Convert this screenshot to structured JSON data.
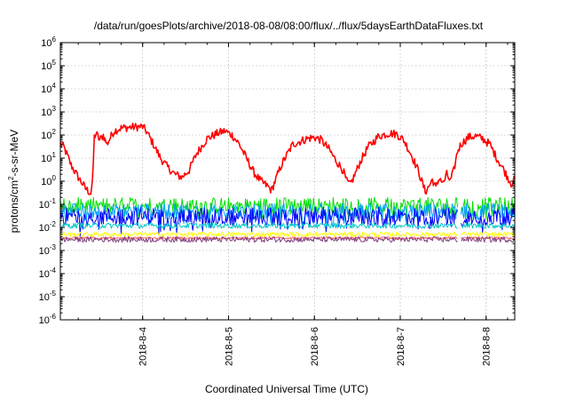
{
  "chart_data": {
    "type": "line",
    "title": "/data/run/goesPlots/archive/2018-08-08/08:00/flux/../flux/5daysEarthDataFluxes.txt",
    "xlabel": "Coordinated Universal Time (UTC)",
    "ylabel": "protons/cm2-s-sr-MeV",
    "ylabel_parts": {
      "prefix": "protons/cm",
      "sup": "2",
      "suffix": "-s-sr-MeV"
    },
    "y_scale": "log",
    "ylim": [
      1e-06,
      1000000.0
    ],
    "y_ticks": [
      {
        "base": "10",
        "exp": "-6",
        "value": 1e-06
      },
      {
        "base": "10",
        "exp": "-5",
        "value": 1e-05
      },
      {
        "base": "10",
        "exp": "-4",
        "value": 0.0001
      },
      {
        "base": "10",
        "exp": "-3",
        "value": 0.001
      },
      {
        "base": "10",
        "exp": "-2",
        "value": 0.01
      },
      {
        "base": "10",
        "exp": "-1",
        "value": 0.1
      },
      {
        "base": "10",
        "exp": "0",
        "value": 1
      },
      {
        "base": "10",
        "exp": "1",
        "value": 10
      },
      {
        "base": "10",
        "exp": "2",
        "value": 100
      },
      {
        "base": "10",
        "exp": "3",
        "value": 1000
      },
      {
        "base": "10",
        "exp": "4",
        "value": 10000
      },
      {
        "base": "10",
        "exp": "5",
        "value": 100000
      },
      {
        "base": "10",
        "exp": "6",
        "value": 1000000
      }
    ],
    "xlim": [
      "2018-08-03 01:00",
      "2018-08-08 08:00"
    ],
    "x_ticks": [
      {
        "label": "2018-8-4",
        "value": "2018-08-04 00:00"
      },
      {
        "label": "2018-8-5",
        "value": "2018-08-05 00:00"
      },
      {
        "label": "2018-8-6",
        "value": "2018-08-06 00:00"
      },
      {
        "label": "2018-8-7",
        "value": "2018-08-07 00:00"
      },
      {
        "label": "2018-8-8",
        "value": "2018-08-08 00:00"
      }
    ],
    "grid": true,
    "gap_range": [
      "2018-08-07 16:00",
      "2018-08-07 17:00"
    ],
    "series": [
      {
        "color": "#ff0000",
        "noise": 0.18,
        "points": [
          [
            "2018-08-03 01:00",
            40
          ],
          [
            "2018-08-03 02:00",
            30
          ],
          [
            "2018-08-03 04:00",
            5
          ],
          [
            "2018-08-03 06:00",
            1.5
          ],
          [
            "2018-08-03 08:00",
            0.5
          ],
          [
            "2018-08-03 09:30",
            0.3
          ],
          [
            "2018-08-03 10:00",
            1
          ],
          [
            "2018-08-03 10:30",
            80
          ],
          [
            "2018-08-03 11:00",
            120
          ],
          [
            "2018-08-03 12:00",
            60
          ],
          [
            "2018-08-03 13:00",
            100
          ],
          [
            "2018-08-03 14:00",
            40
          ],
          [
            "2018-08-03 16:00",
            150
          ],
          [
            "2018-08-03 18:00",
            200
          ],
          [
            "2018-08-03 21:00",
            220
          ],
          [
            "2018-08-04 00:00",
            230
          ],
          [
            "2018-08-04 01:00",
            150
          ],
          [
            "2018-08-04 03:00",
            40
          ],
          [
            "2018-08-04 05:00",
            10
          ],
          [
            "2018-08-04 07:00",
            4
          ],
          [
            "2018-08-04 09:00",
            2
          ],
          [
            "2018-08-04 11:00",
            1.5
          ],
          [
            "2018-08-04 13:00",
            3
          ],
          [
            "2018-08-04 15:00",
            15
          ],
          [
            "2018-08-04 18:00",
            70
          ],
          [
            "2018-08-04 21:00",
            120
          ],
          [
            "2018-08-04 23:00",
            150
          ],
          [
            "2018-08-05 01:00",
            100
          ],
          [
            "2018-08-05 03:00",
            40
          ],
          [
            "2018-08-05 05:00",
            10
          ],
          [
            "2018-08-05 07:00",
            2.5
          ],
          [
            "2018-08-05 09:00",
            1
          ],
          [
            "2018-08-05 11:00",
            0.6
          ],
          [
            "2018-08-05 12:00",
            0.4
          ],
          [
            "2018-08-05 13:00",
            1
          ],
          [
            "2018-08-05 15:00",
            6
          ],
          [
            "2018-08-05 18:00",
            40
          ],
          [
            "2018-08-05 22:00",
            70
          ],
          [
            "2018-08-06 00:00",
            80
          ],
          [
            "2018-08-06 02:00",
            60
          ],
          [
            "2018-08-06 04:00",
            25
          ],
          [
            "2018-08-06 06:00",
            8
          ],
          [
            "2018-08-06 08:00",
            3
          ],
          [
            "2018-08-06 09:00",
            1
          ],
          [
            "2018-08-06 10:00",
            0.7
          ],
          [
            "2018-08-06 11:00",
            1.5
          ],
          [
            "2018-08-06 13:00",
            8
          ],
          [
            "2018-08-06 15:00",
            30
          ],
          [
            "2018-08-06 18:00",
            90
          ],
          [
            "2018-08-06 21:00",
            120
          ],
          [
            "2018-08-06 23:00",
            110
          ],
          [
            "2018-08-07 01:00",
            60
          ],
          [
            "2018-08-07 03:00",
            15
          ],
          [
            "2018-08-07 05:00",
            3
          ],
          [
            "2018-08-07 06:00",
            1
          ],
          [
            "2018-08-07 07:00",
            0.35
          ],
          [
            "2018-08-07 08:00",
            0.6
          ],
          [
            "2018-08-07 09:00",
            1.2
          ],
          [
            "2018-08-07 10:00",
            0.5
          ],
          [
            "2018-08-07 11:00",
            1.5
          ],
          [
            "2018-08-07 12:00",
            0.8
          ],
          [
            "2018-08-07 13:00",
            2
          ],
          [
            "2018-08-07 14:00",
            1
          ],
          [
            "2018-08-07 15:00",
            3
          ],
          [
            "2018-08-07 16:00",
            20
          ],
          [
            "2018-08-07 17:00",
            40
          ],
          [
            "2018-08-07 19:00",
            80
          ],
          [
            "2018-08-07 21:00",
            90
          ],
          [
            "2018-08-07 23:00",
            70
          ],
          [
            "2018-08-08 01:00",
            40
          ],
          [
            "2018-08-08 03:00",
            10
          ],
          [
            "2018-08-08 05:00",
            3
          ],
          [
            "2018-08-08 06:00",
            1.5
          ],
          [
            "2018-08-08 07:00",
            0.8
          ],
          [
            "2018-08-08 08:00",
            1.2
          ]
        ]
      },
      {
        "color": "#00e000",
        "noise": 0.35,
        "band": 1,
        "points": [
          [
            "2018-08-03 01:00",
            0.09
          ],
          [
            "2018-08-05 12:00",
            0.09
          ],
          [
            "2018-08-08 08:00",
            0.09
          ]
        ]
      },
      {
        "color": "#00a0ff",
        "noise": 0.35,
        "band": 1,
        "points": [
          [
            "2018-08-03 01:00",
            0.05
          ],
          [
            "2018-08-05 12:00",
            0.05
          ],
          [
            "2018-08-08 08:00",
            0.05
          ]
        ]
      },
      {
        "color": "#0000ff",
        "noise": 0.4,
        "band": 1,
        "points": [
          [
            "2018-08-03 01:00",
            0.03
          ],
          [
            "2018-08-05 12:00",
            0.03
          ],
          [
            "2018-08-08 08:00",
            0.03
          ]
        ]
      },
      {
        "color": "#00c8c8",
        "noise": 0.12,
        "band": 0,
        "points": [
          [
            "2018-08-03 01:00",
            0.012
          ],
          [
            "2018-08-05 12:00",
            0.012
          ],
          [
            "2018-08-08 08:00",
            0.012
          ]
        ]
      },
      {
        "color": "#ffff00",
        "noise": 0.1,
        "band": 0,
        "points": [
          [
            "2018-08-03 01:00",
            0.005
          ],
          [
            "2018-08-05 12:00",
            0.005
          ],
          [
            "2018-08-08 08:00",
            0.005
          ]
        ]
      },
      {
        "color": "#ff6060",
        "noise": 0.05,
        "band": 0,
        "points": [
          [
            "2018-08-03 01:00",
            0.0035
          ],
          [
            "2018-08-05 12:00",
            0.0035
          ],
          [
            "2018-08-08 08:00",
            0.0035
          ]
        ]
      },
      {
        "color": "#804080",
        "noise": 0.12,
        "band": 0,
        "points": [
          [
            "2018-08-03 01:00",
            0.003
          ],
          [
            "2018-08-05 12:00",
            0.003
          ],
          [
            "2018-08-08 08:00",
            0.003
          ]
        ]
      }
    ]
  }
}
